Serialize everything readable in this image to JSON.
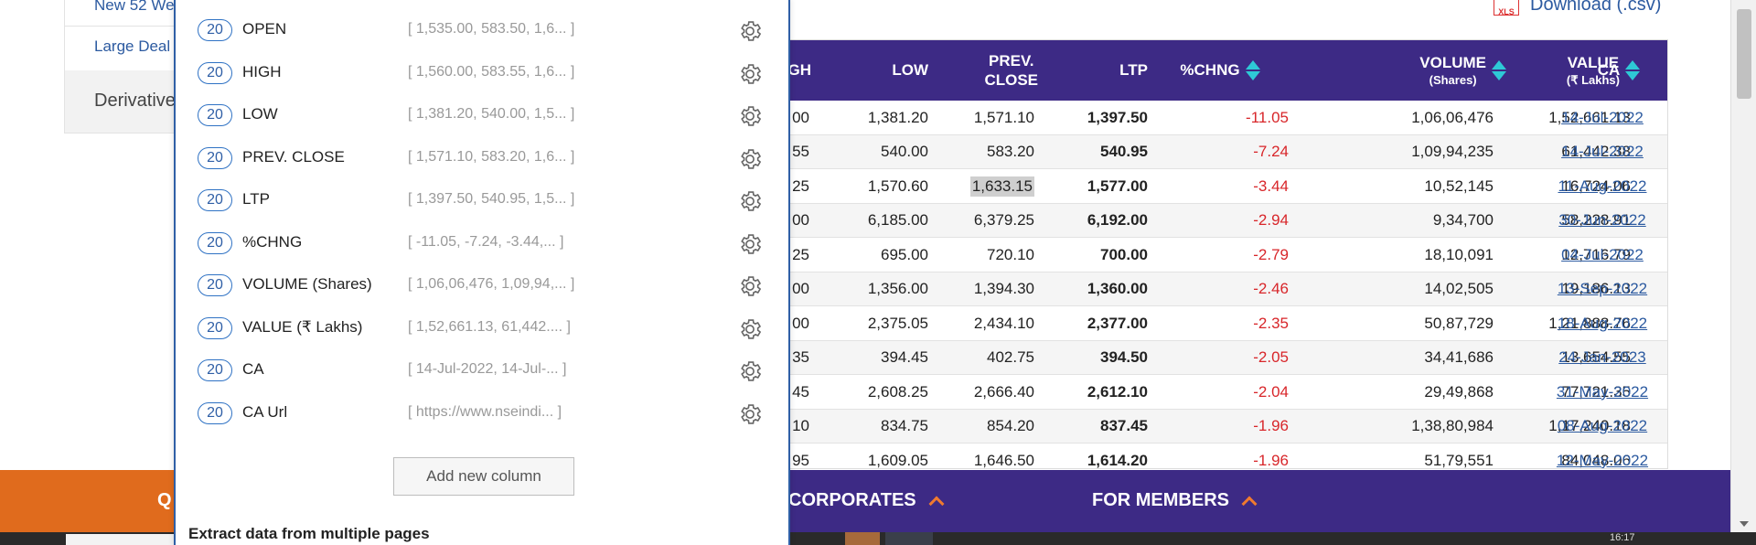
{
  "left_nav": {
    "item1": "New 52 We",
    "item2": "Large Deal",
    "item3": "Derivative"
  },
  "download": {
    "icon": "xls-file-icon",
    "badge": "XLS",
    "label": "Download (.csv)"
  },
  "table": {
    "headers": [
      {
        "label": "GH",
        "sub": ""
      },
      {
        "label": "LOW",
        "sub": ""
      },
      {
        "label": "PREV.",
        "sub": "CLOSE"
      },
      {
        "label": "LTP",
        "sub": ""
      },
      {
        "label": "%CHNG",
        "sub": ""
      },
      {
        "label": "VOLUME",
        "sub": "(Shares)"
      },
      {
        "label": "VALUE",
        "sub": "(₹ Lakhs)"
      },
      {
        "label": "CA",
        "sub": ""
      }
    ],
    "rows": [
      [
        "00",
        "1,381.20",
        "1,571.10",
        "1,397.50",
        "-11.05",
        "1,06,06,476",
        "1,52,661.13",
        "14-Jul-2022"
      ],
      [
        "55",
        "540.00",
        "583.20",
        "540.95",
        "-7.24",
        "1,09,94,235",
        "61,442.38",
        "14-Jul-2022"
      ],
      [
        "25",
        "1,570.60",
        "1,633.15",
        "1,577.00",
        "-3.44",
        "10,52,145",
        "16,724.06",
        "11-Aug-2022"
      ],
      [
        "00",
        "6,185.00",
        "6,379.25",
        "6,192.00",
        "-2.94",
        "9,34,700",
        "58,228.91",
        "30-Jun-2022"
      ],
      [
        "25",
        "695.00",
        "720.10",
        "700.00",
        "-2.79",
        "18,10,091",
        "12,716.79",
        "04-Jul-2022"
      ],
      [
        "00",
        "1,356.00",
        "1,394.30",
        "1,360.00",
        "-2.46",
        "14,02,505",
        "19,186.13",
        "13-Sep-2022"
      ],
      [
        "00",
        "2,375.05",
        "2,434.10",
        "2,377.00",
        "-2.35",
        "50,87,729",
        "1,21,888.76",
        "18-Aug-2022"
      ],
      [
        "35",
        "394.45",
        "402.75",
        "394.50",
        "-2.05",
        "34,41,686",
        "13,654.55",
        "24-Jan-2023"
      ],
      [
        "45",
        "2,608.25",
        "2,666.40",
        "2,612.10",
        "-2.04",
        "29,49,868",
        "77,721.35",
        "31-May-2022"
      ],
      [
        "10",
        "834.75",
        "854.20",
        "837.45",
        "-1.96",
        "1,38,80,984",
        "1,17,240.18",
        "08-Aug-2022"
      ],
      [
        "95",
        "1,609.05",
        "1,646.50",
        "1,614.20",
        "-1.96",
        "51,79,551",
        "84,048.06",
        "12-May-2022"
      ]
    ],
    "highlighted_cell": "1,633.15"
  },
  "bottom_bar": {
    "left_label": "Q",
    "corporates": "CORPORATES",
    "for_members": "FOR MEMBERS"
  },
  "panel": {
    "columns": [
      {
        "count": "20",
        "name": "OPEN",
        "preview": "[ 1,535.00, 583.50, 1,6... ]"
      },
      {
        "count": "20",
        "name": "HIGH",
        "preview": "[ 1,560.00, 583.55, 1,6... ]"
      },
      {
        "count": "20",
        "name": "LOW",
        "preview": "[ 1,381.20, 540.00, 1,5... ]"
      },
      {
        "count": "20",
        "name": "PREV. CLOSE",
        "preview": "[ 1,571.10, 583.20, 1,6... ]"
      },
      {
        "count": "20",
        "name": "LTP",
        "preview": "[ 1,397.50, 540.95, 1,5... ]"
      },
      {
        "count": "20",
        "name": "%CHNG",
        "preview": "[ -11.05, -7.24, -3.44,... ]"
      },
      {
        "count": "20",
        "name": "VOLUME (Shares)",
        "preview": "[ 1,06,06,476, 1,09,94,... ]"
      },
      {
        "count": "20",
        "name": "VALUE (₹ Lakhs)",
        "preview": "[ 1,52,661.13, 61,442.... ]"
      },
      {
        "count": "20",
        "name": "CA",
        "preview": "[ 14-Jul-2022, 14-Jul-... ]"
      },
      {
        "count": "20",
        "name": "CA Url",
        "preview": "[ https://www.nseindi... ]"
      }
    ],
    "add_button": "Add new column",
    "multi_pages_title": "Extract data from multiple pages"
  },
  "taskbar": {
    "clock": "16:17"
  },
  "colors": {
    "header_bg": "#3d2a85",
    "accent_orange": "#e06b1d",
    "negative": "#d8262a",
    "link": "#2c5aa0",
    "panel_border": "#2f5fa6"
  }
}
